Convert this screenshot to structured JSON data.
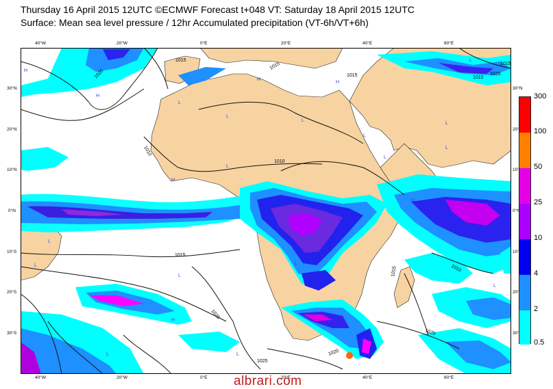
{
  "header": {
    "line1": "Thursday 16 April 2015 12UTC ©ECMWF Forecast t+048 VT: Saturday 18 April 2015 12UTC",
    "line2": "Surface: Mean sea level pressure / 12hr Accumulated precipitation (VT-6h/VT+6h)"
  },
  "map": {
    "lon_labels": [
      "40°W",
      "20°W",
      "0°E",
      "20°E",
      "40°E",
      "60°E"
    ],
    "lat_labels": [
      "30°N",
      "20°N",
      "10°N",
      "0°N",
      "10°S",
      "20°S",
      "30°S"
    ],
    "isobar_labels": [
      "1020",
      "1015",
      "1015",
      "1015",
      "1010",
      "1010",
      "1010",
      "1015",
      "1020",
      "1015",
      "1010",
      "1015",
      "1020",
      "1025",
      "1020",
      "1020"
    ],
    "pressure_centers": [
      "H",
      "H",
      "L",
      "H",
      "L",
      "L",
      "H",
      "L",
      "L",
      "L",
      "L",
      "H",
      "L",
      "L",
      "L",
      "L",
      "L",
      "L",
      "L",
      "H",
      "H",
      "L",
      "L",
      "L"
    ],
    "colors": {
      "land": "#f7d3a1",
      "ocean": "#ffffff",
      "precip_0_5": "#00ffff",
      "precip_2": "#00b2e6",
      "precip_4": "#0033ff",
      "precip_10": "#7f00ff",
      "precip_25": "#ff00ff",
      "precip_50": "#ff6600",
      "precip_100": "#ff0000"
    }
  },
  "legend": {
    "labels": [
      "300",
      "100",
      "50",
      "25",
      "10",
      "4",
      "2",
      "0.5"
    ],
    "colors": [
      "#ff0000",
      "#ff8000",
      "#e600e6",
      "#aa00ff",
      "#0000ee",
      "#1e90ff",
      "#00ffff"
    ]
  },
  "watermark": "albrari.com"
}
